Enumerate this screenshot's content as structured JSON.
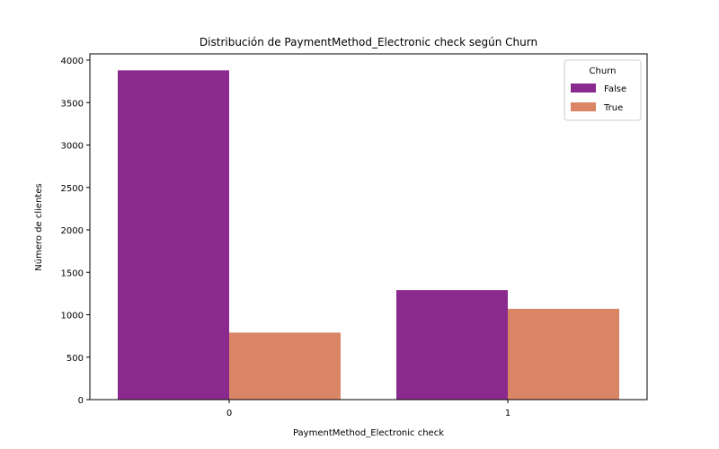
{
  "chart_data": {
    "type": "bar",
    "title": "Distribución de PaymentMethod_Electronic check según Churn",
    "xlabel": "PaymentMethod_Electronic check",
    "ylabel": "Número de clientes",
    "categories": [
      "0",
      "1"
    ],
    "series": [
      {
        "name": "False",
        "color": "#8b2a8e",
        "values": [
          3880,
          1290
        ]
      },
      {
        "name": "True",
        "color": "#d98566",
        "values": [
          790,
          1070
        ]
      }
    ],
    "ylim": [
      0,
      4000
    ],
    "yticks": [
      0,
      500,
      1000,
      1500,
      2000,
      2500,
      3000,
      3500,
      4000
    ],
    "legend": {
      "title": "Churn",
      "position": "top-right"
    },
    "grid": false
  }
}
